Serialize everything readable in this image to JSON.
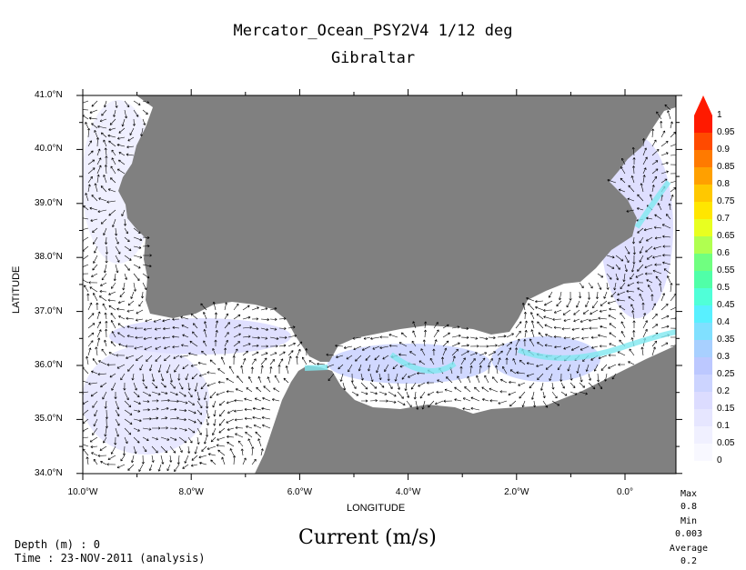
{
  "title": "Mercator_Ocean_PSY2V4 1/12 deg",
  "subtitle": "Gibraltar",
  "map": {
    "xlabel": "LONGITUDE",
    "ylabel": "LATITUDE",
    "x_ticks": [
      "10.0°W",
      "8.0°W",
      "6.0°W",
      "4.0°W",
      "2.0°W",
      "0.0°"
    ],
    "y_ticks": [
      "41.0°N",
      "40.0°N",
      "39.0°N",
      "38.0°N",
      "37.0°N",
      "36.0°N",
      "35.0°N",
      "34.0°N"
    ],
    "land_color": "#808080",
    "ocean_color": "#ffffff"
  },
  "colorbar": {
    "labels": [
      "1",
      "0.95",
      "0.9",
      "0.85",
      "0.8",
      "0.75",
      "0.7",
      "0.65",
      "0.6",
      "0.55",
      "0.5",
      "0.45",
      "0.4",
      "0.35",
      "0.3",
      "0.25",
      "0.2",
      "0.15",
      "0.1",
      "0.05",
      "0"
    ],
    "colors": [
      "#ff1a00",
      "#ff4a00",
      "#ff7a00",
      "#ffa000",
      "#ffc800",
      "#ffe600",
      "#e8ff20",
      "#b0ff50",
      "#70ff80",
      "#50ffa8",
      "#50ffd8",
      "#58f0ff",
      "#80e0ff",
      "#a8d0ff",
      "#bcc8ff",
      "#ccd4ff",
      "#dcdcff",
      "#e6e6ff",
      "#f0f0ff",
      "#f8f8ff"
    ]
  },
  "stats": {
    "max_label": "Max",
    "max_value": "0.8",
    "min_label": "Min",
    "min_value": "0.003",
    "avg_label": "Average",
    "avg_value": "0.2"
  },
  "footer": {
    "depth": "Depth (m) : 0",
    "time": "Time : 23-NOV-2011 (analysis)",
    "variable": "Current (m/s)"
  }
}
